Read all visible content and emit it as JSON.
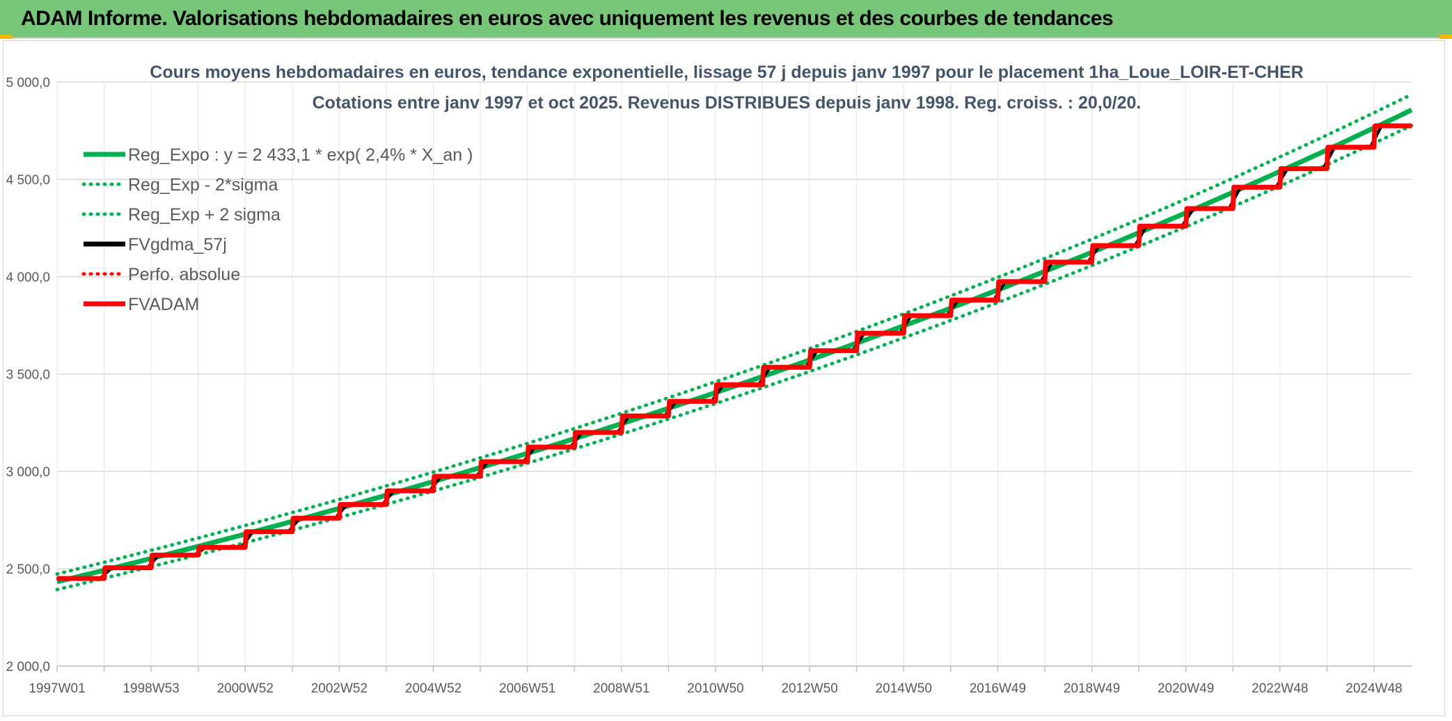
{
  "banner": {
    "title": "ADAM Informe. Valorisations hebdomadaires en euros avec uniquement les revenus et des courbes de tendances",
    "background": "#78c679"
  },
  "chart_data": {
    "type": "line",
    "title": "Cours moyens hebdomadaires en euros, tendance exponentielle, lissage 57 j depuis janv 1997 pour le placement 1ha_Loue_LOIR-ET-CHER",
    "subtitle": "Cotations entre janv 1997 et oct 2025. Revenus DISTRIBUES depuis janv 1998. Reg. croiss. : 20,0/20.",
    "xlabel": "",
    "ylabel": "",
    "ylim": [
      2000,
      5000
    ],
    "yticks": [
      2000,
      2500,
      3000,
      3500,
      4000,
      4500,
      5000
    ],
    "ytick_labels": [
      "2 000,0",
      "2 500,0",
      "3 000,0",
      "3 500,0",
      "4 000,0",
      "4 500,0",
      "5 000,0"
    ],
    "x_start": 1997.0,
    "x_end": 2025.8,
    "xticks": [
      1997.0,
      1999.0,
      2001.0,
      2003.0,
      2005.0,
      2007.0,
      2009.0,
      2011.0,
      2013.0,
      2015.0,
      2017.0,
      2019.0,
      2021.0,
      2023.0,
      2025.0
    ],
    "xtick_labels": [
      "1997W01",
      "1998W53",
      "2000W52",
      "2002W52",
      "2004W52",
      "2006W51",
      "2008W51",
      "2010W50",
      "2012W50",
      "2014W50",
      "2016W49",
      "2018W49",
      "2020W49",
      "2022W48",
      "2024W48"
    ],
    "grid": true,
    "legend_position": "top-left",
    "series": [
      {
        "name": "Reg_Expo : y = 2 433,1 * exp( 2,4% *  X_an )",
        "style": "solid",
        "color": "#00b050",
        "kind": "regression",
        "a": 2433.1,
        "rate": 0.024
      },
      {
        "name": "Reg_Exp - 2*sigma",
        "style": "dotted",
        "color": "#00b050",
        "kind": "regression",
        "a": 2393.0,
        "rate": 0.024
      },
      {
        "name": "Reg_Exp + 2 sigma",
        "style": "dotted",
        "color": "#00b050",
        "kind": "regression",
        "a": 2473.0,
        "rate": 0.024
      },
      {
        "name": "FVgdma_57j",
        "style": "solid",
        "color": "#000000",
        "kind": "smoothed"
      },
      {
        "name": "Perfo. absolue",
        "style": "dotted",
        "color": "#ff0000",
        "kind": "steps"
      },
      {
        "name": "FVADAM",
        "style": "solid",
        "color": "#ff0000",
        "kind": "steps"
      }
    ],
    "annual_levels": {
      "years": [
        1997,
        1998,
        1999,
        2000,
        2001,
        2002,
        2003,
        2004,
        2005,
        2006,
        2007,
        2008,
        2009,
        2010,
        2011,
        2012,
        2013,
        2014,
        2015,
        2016,
        2017,
        2018,
        2019,
        2020,
        2021,
        2022,
        2023,
        2024,
        2025
      ],
      "values": [
        2450,
        2505,
        2570,
        2610,
        2690,
        2760,
        2830,
        2900,
        2975,
        3050,
        3125,
        3200,
        3285,
        3360,
        3445,
        3535,
        3620,
        3710,
        3800,
        3880,
        3975,
        4075,
        4160,
        4260,
        4350,
        4460,
        4555,
        4665,
        4775
      ]
    }
  }
}
